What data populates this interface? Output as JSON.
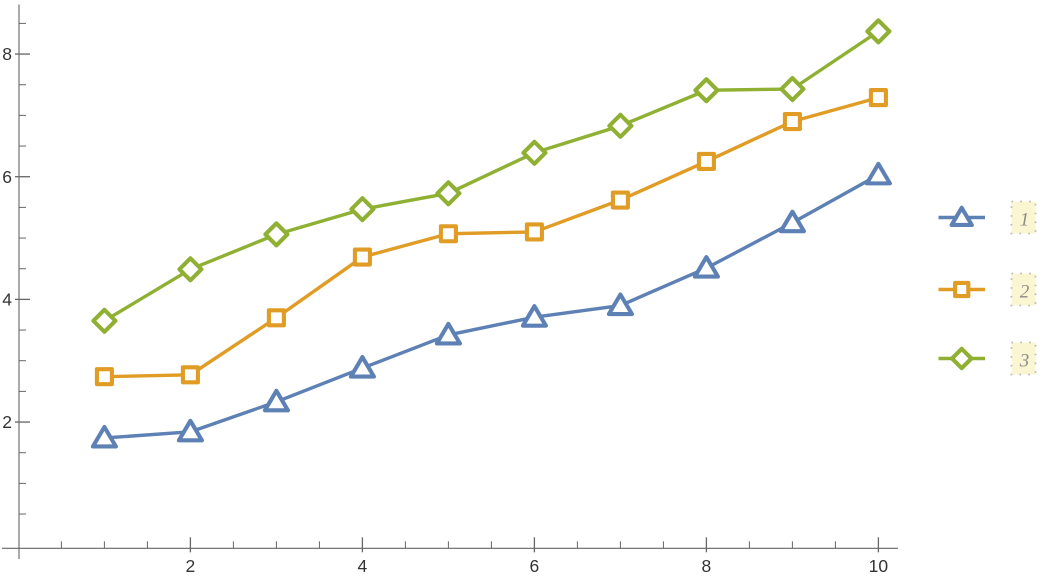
{
  "chart_data": {
    "type": "line",
    "title": "",
    "xlabel": "",
    "ylabel": "",
    "x": [
      1,
      2,
      3,
      4,
      5,
      6,
      7,
      8,
      9,
      10
    ],
    "series": [
      {
        "name": "1",
        "marker": "triangle",
        "color": "#5E81B5",
        "values": [
          1.74,
          1.84,
          2.33,
          2.88,
          3.42,
          3.71,
          3.9,
          4.51,
          5.25,
          6.03
        ]
      },
      {
        "name": "2",
        "marker": "square",
        "color": "#E09C24",
        "values": [
          2.74,
          2.77,
          3.7,
          4.69,
          5.07,
          5.1,
          5.62,
          6.25,
          6.9,
          7.29
        ]
      },
      {
        "name": "3",
        "marker": "diamond",
        "color": "#8FB032",
        "values": [
          3.65,
          4.49,
          5.06,
          5.47,
          5.73,
          6.39,
          6.83,
          7.41,
          7.43,
          8.37
        ]
      }
    ],
    "x_ticks_major": [
      2,
      4,
      6,
      8,
      10
    ],
    "x_tick_labels": [
      "2",
      "4",
      "6",
      "8",
      "10"
    ],
    "y_ticks_major": [
      2,
      4,
      6,
      8
    ],
    "y_tick_labels": [
      "2",
      "4",
      "6",
      "8"
    ],
    "x_minor_step": 0.5,
    "y_minor_step": 0.5,
    "xlim": [
      0,
      10.2
    ],
    "ylim": [
      0,
      8.8
    ],
    "grid": false,
    "legend": {
      "position": "right",
      "labels": [
        "1",
        "2",
        "3"
      ]
    }
  },
  "colors": {
    "background": "#FFFFFF",
    "axis": "#666666",
    "tick_label": "#333333",
    "marker_fill": "#FFFFFF",
    "legend_box_fill": "#FBF6D2",
    "legend_box_border": "#B9B9B9",
    "legend_label_text": "#8B8B8B"
  }
}
